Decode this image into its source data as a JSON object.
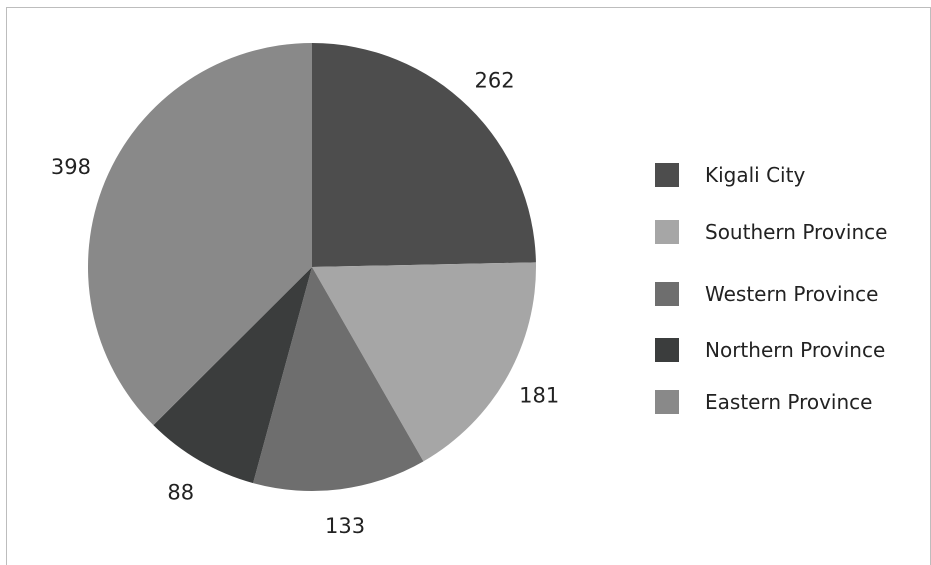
{
  "chart_data": {
    "type": "pie",
    "title": "",
    "categories": [
      "Kigali City",
      "Southern Province",
      "Western Province",
      "Northern Province",
      "Eastern Province"
    ],
    "values": [
      262,
      181,
      133,
      88,
      398
    ],
    "colors": [
      "#4d4d4d",
      "#a6a6a6",
      "#6e6e6e",
      "#3b3d3d",
      "#898989"
    ],
    "data_labels": [
      "262",
      "181",
      "133",
      "88",
      "398"
    ],
    "start_angle_deg": 0,
    "direction": "clockwise",
    "legend_position": "right"
  }
}
